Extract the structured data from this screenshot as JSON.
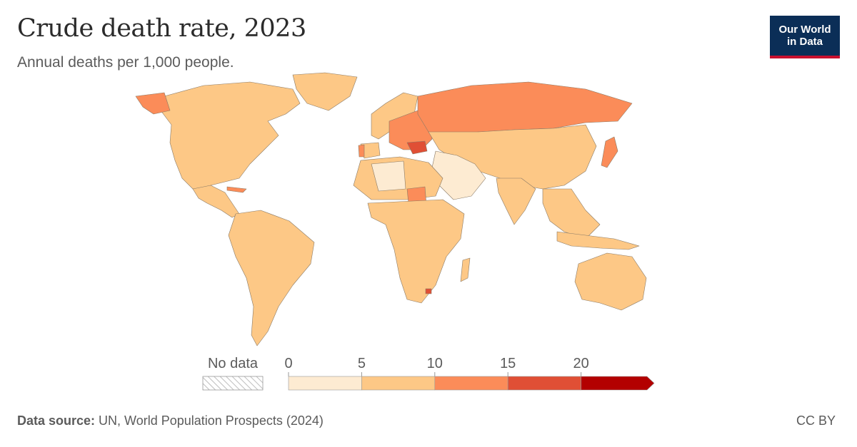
{
  "header": {
    "title": "Crude death rate, 2023",
    "subtitle": "Annual deaths per 1,000 people."
  },
  "logo": {
    "line1": "Our World",
    "line2": "in Data",
    "bg_color": "#0b2e57",
    "accent_color": "#c8102e"
  },
  "legend": {
    "no_data_label": "No data",
    "ticks": [
      "0",
      "5",
      "10",
      "15",
      "20"
    ],
    "bins": [
      {
        "min": 0,
        "max": 5,
        "color": "#fdebd2"
      },
      {
        "min": 5,
        "max": 10,
        "color": "#fdc886"
      },
      {
        "min": 10,
        "max": 15,
        "color": "#fb8c59"
      },
      {
        "min": 15,
        "max": 20,
        "color": "#e04f35"
      },
      {
        "min": 20,
        "max": null,
        "color": "#b30000"
      }
    ]
  },
  "footer": {
    "source_label": "Data source:",
    "source_text": " UN, World Population Prospects (2024)",
    "license": "CC BY"
  }
}
